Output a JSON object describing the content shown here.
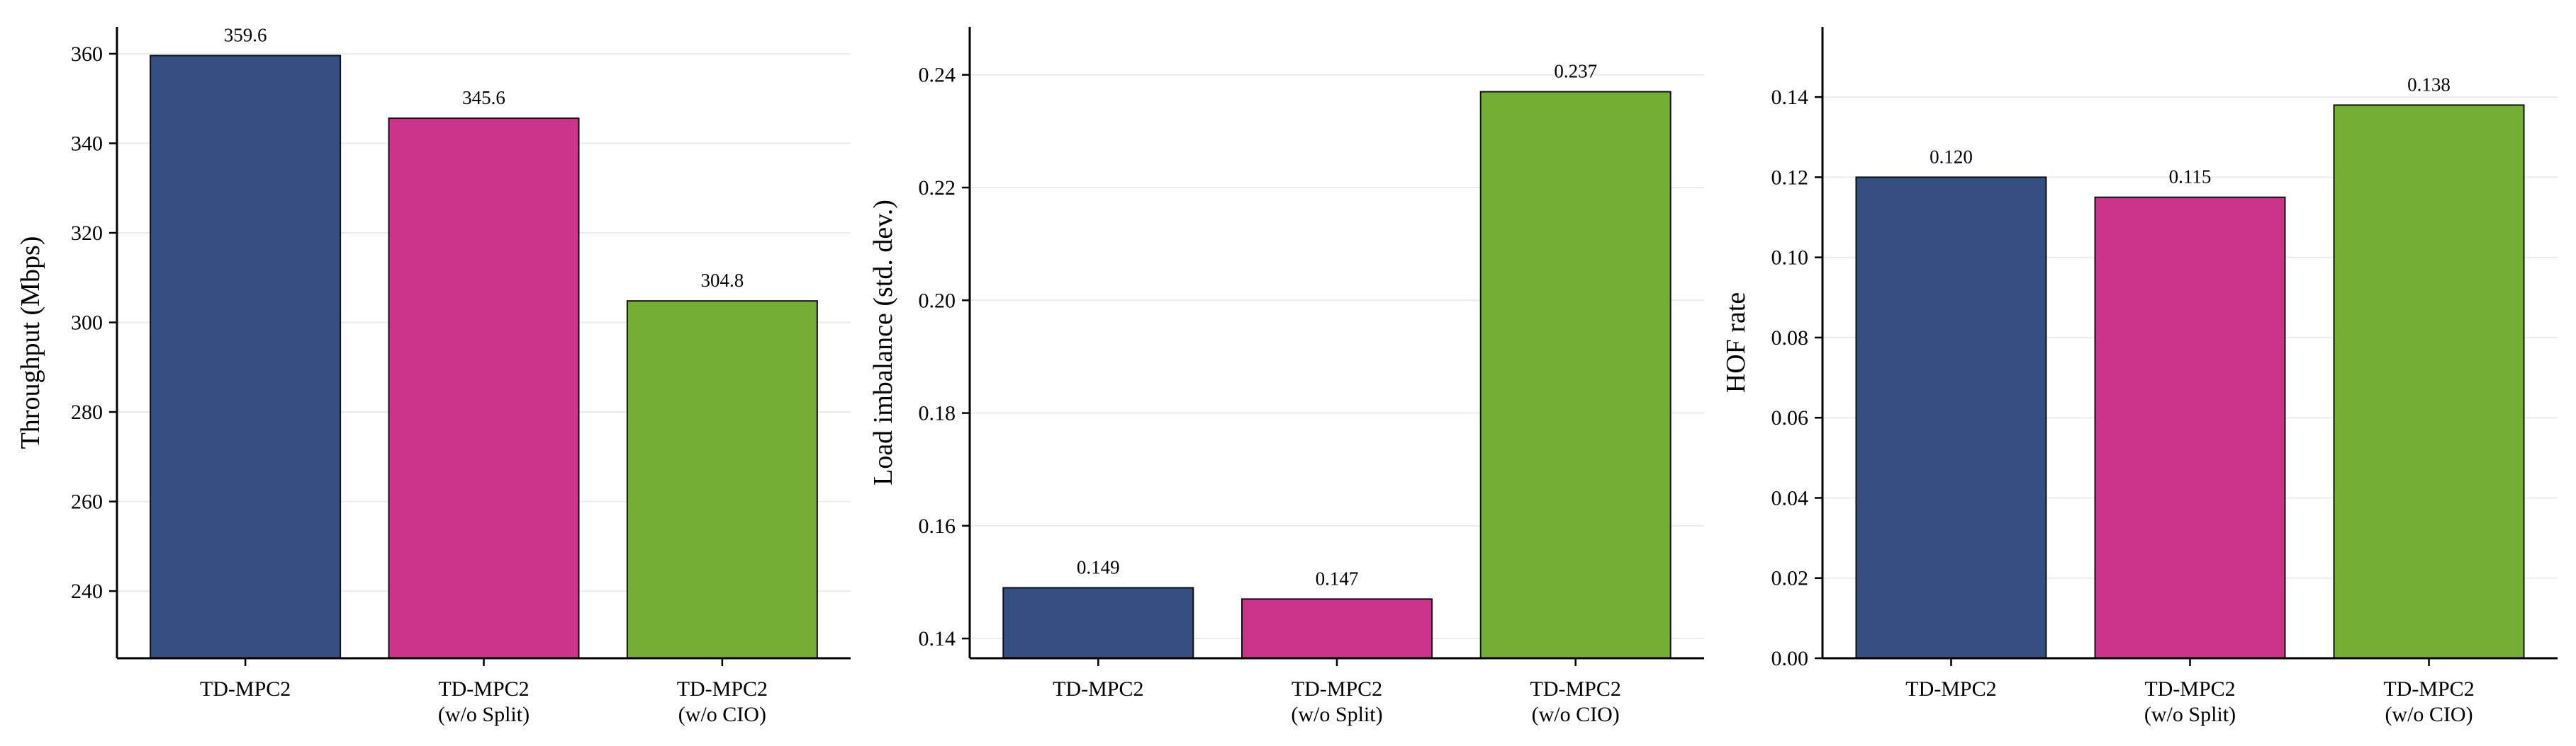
{
  "chart_data": [
    {
      "type": "bar",
      "categories": [
        [
          "TD-MPC2"
        ],
        [
          "TD-MPC2",
          "(w/o Split)"
        ],
        [
          "TD-MPC2",
          "(w/o CIO)"
        ]
      ],
      "values": [
        359.6,
        345.6,
        304.8
      ],
      "labels": [
        "359.6",
        "345.6",
        "304.8"
      ],
      "colors": [
        "#354f82",
        "#cb348a",
        "#74ae35"
      ],
      "ylabel": "Throughput (Mbps)",
      "ylim": [
        225,
        366
      ],
      "yticks": [
        240,
        260,
        280,
        300,
        320,
        340,
        360
      ],
      "ytick_labels": [
        "240",
        "260",
        "280",
        "300",
        "320",
        "340",
        "360"
      ],
      "grid": "y"
    },
    {
      "type": "bar",
      "categories": [
        [
          "TD-MPC2"
        ],
        [
          "TD-MPC2",
          "(w/o Split)"
        ],
        [
          "TD-MPC2",
          "(w/o CIO)"
        ]
      ],
      "values": [
        0.149,
        0.147,
        0.237
      ],
      "labels": [
        "0.149",
        "0.147",
        "0.237"
      ],
      "colors": [
        "#354f82",
        "#cb348a",
        "#74ae35"
      ],
      "ylabel": "Load imbalance (std. dev.)",
      "ylim": [
        0.1365,
        0.2485
      ],
      "yticks": [
        0.14,
        0.16,
        0.18,
        0.2,
        0.22,
        0.24
      ],
      "ytick_labels": [
        "0.14",
        "0.16",
        "0.18",
        "0.20",
        "0.22",
        "0.24"
      ],
      "grid": "y"
    },
    {
      "type": "bar",
      "categories": [
        [
          "TD-MPC2"
        ],
        [
          "TD-MPC2",
          "(w/o Split)"
        ],
        [
          "TD-MPC2",
          "(w/o CIO)"
        ]
      ],
      "values": [
        0.12,
        0.115,
        0.138
      ],
      "labels": [
        "0.120",
        "0.115",
        "0.138"
      ],
      "colors": [
        "#354f82",
        "#cb348a",
        "#74ae35"
      ],
      "ylabel": "HOF rate",
      "ylim": [
        0,
        0.1575
      ],
      "yticks": [
        0.0,
        0.02,
        0.04,
        0.06,
        0.08,
        0.1,
        0.12,
        0.14
      ],
      "ytick_labels": [
        "0.00",
        "0.02",
        "0.04",
        "0.06",
        "0.08",
        "0.10",
        "0.12",
        "0.14"
      ],
      "grid": "y"
    }
  ]
}
